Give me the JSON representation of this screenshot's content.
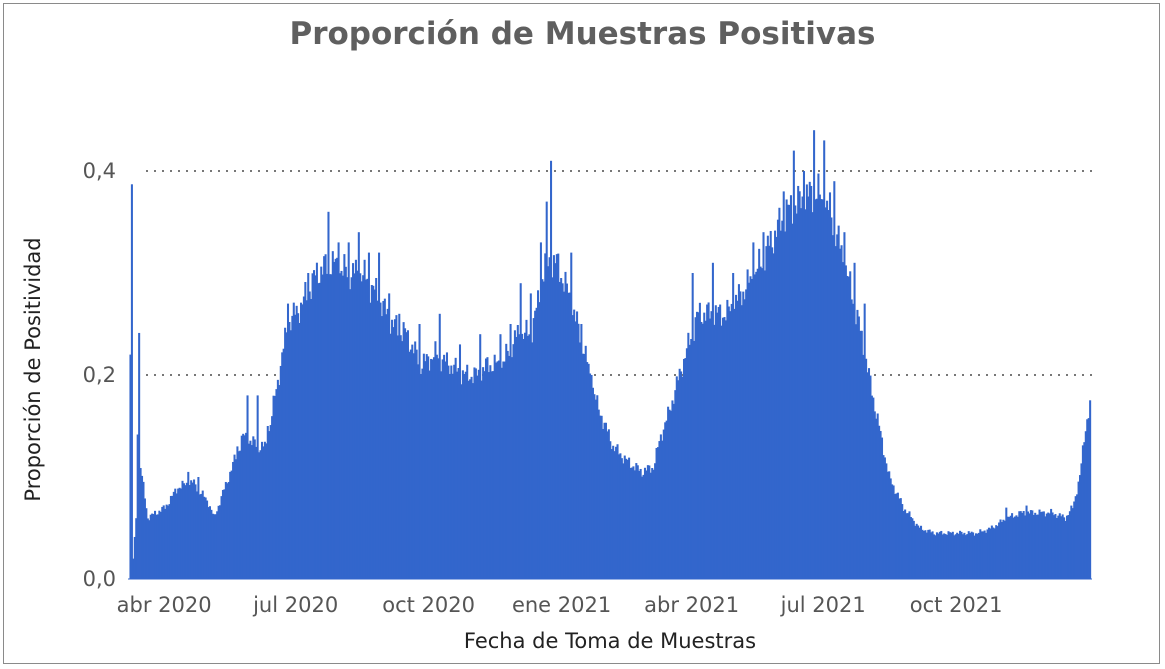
{
  "chart_data": {
    "type": "bar",
    "title": "Proporción de Muestras Positivas",
    "xlabel": "Fecha de Toma de Muestras",
    "ylabel": "Proporción de Positividad",
    "ylim": [
      0,
      0.45
    ],
    "yticks": [
      {
        "value": 0.0,
        "label": "0,0"
      },
      {
        "value": 0.2,
        "label": "0,2"
      },
      {
        "value": 0.4,
        "label": "0,4"
      }
    ],
    "xlim": [
      "2020-03-07",
      "2022-01-03"
    ],
    "xticks": [
      {
        "date": "2020-04-01",
        "label": "abr 2020"
      },
      {
        "date": "2020-07-01",
        "label": "jul 2020"
      },
      {
        "date": "2020-10-01",
        "label": "oct 2020"
      },
      {
        "date": "2021-01-01",
        "label": "ene 2021"
      },
      {
        "date": "2021-04-01",
        "label": "abr 2021"
      },
      {
        "date": "2021-07-01",
        "label": "jul 2021"
      },
      {
        "date": "2021-10-01",
        "label": "oct 2021"
      }
    ],
    "grid": true,
    "series": [
      {
        "color": "#3366cc",
        "points": [
          [
            "2020-03-08",
            0.22
          ],
          [
            "2020-03-09",
            0.37
          ],
          [
            "2020-03-10",
            0.02
          ],
          [
            "2020-03-12",
            0.06
          ],
          [
            "2020-03-14",
            0.24
          ],
          [
            "2020-03-15",
            0.11
          ],
          [
            "2020-03-20",
            0.06
          ],
          [
            "2020-04-01",
            0.07
          ],
          [
            "2020-04-10",
            0.09
          ],
          [
            "2020-04-20",
            0.095
          ],
          [
            "2020-05-01",
            0.075
          ],
          [
            "2020-05-05",
            0.06
          ],
          [
            "2020-05-15",
            0.1
          ],
          [
            "2020-05-25",
            0.14
          ],
          [
            "2020-06-05",
            0.13
          ],
          [
            "2020-06-10",
            0.13
          ],
          [
            "2020-06-15",
            0.17
          ],
          [
            "2020-06-25",
            0.25
          ],
          [
            "2020-07-05",
            0.27
          ],
          [
            "2020-07-15",
            0.3
          ],
          [
            "2020-07-25",
            0.31
          ],
          [
            "2020-08-05",
            0.3
          ],
          [
            "2020-08-15",
            0.3
          ],
          [
            "2020-08-25",
            0.28
          ],
          [
            "2020-09-05",
            0.25
          ],
          [
            "2020-09-15",
            0.24
          ],
          [
            "2020-09-25",
            0.21
          ],
          [
            "2020-10-05",
            0.22
          ],
          [
            "2020-10-15",
            0.21
          ],
          [
            "2020-10-25",
            0.2
          ],
          [
            "2020-11-05",
            0.2
          ],
          [
            "2020-11-10",
            0.21
          ],
          [
            "2020-11-20",
            0.21
          ],
          [
            "2020-12-01",
            0.24
          ],
          [
            "2020-12-10",
            0.24
          ],
          [
            "2020-12-15",
            0.27
          ],
          [
            "2020-12-20",
            0.31
          ],
          [
            "2020-12-28",
            0.31
          ],
          [
            "2021-01-05",
            0.28
          ],
          [
            "2021-01-15",
            0.23
          ],
          [
            "2021-01-25",
            0.17
          ],
          [
            "2021-02-05",
            0.13
          ],
          [
            "2021-02-15",
            0.115
          ],
          [
            "2021-02-25",
            0.105
          ],
          [
            "2021-03-05",
            0.11
          ],
          [
            "2021-03-10",
            0.14
          ],
          [
            "2021-03-15",
            0.16
          ],
          [
            "2021-03-25",
            0.21
          ],
          [
            "2021-04-05",
            0.26
          ],
          [
            "2021-04-15",
            0.26
          ],
          [
            "2021-04-25",
            0.26
          ],
          [
            "2021-05-05",
            0.28
          ],
          [
            "2021-05-15",
            0.3
          ],
          [
            "2021-05-25",
            0.33
          ],
          [
            "2021-06-05",
            0.36
          ],
          [
            "2021-06-15",
            0.37
          ],
          [
            "2021-06-25",
            0.38
          ],
          [
            "2021-07-05",
            0.36
          ],
          [
            "2021-07-15",
            0.31
          ],
          [
            "2021-07-25",
            0.25
          ],
          [
            "2021-08-05",
            0.17
          ],
          [
            "2021-08-15",
            0.1
          ],
          [
            "2021-08-25",
            0.07
          ],
          [
            "2021-09-05",
            0.05
          ],
          [
            "2021-09-15",
            0.045
          ],
          [
            "2021-09-25",
            0.045
          ],
          [
            "2021-10-05",
            0.045
          ],
          [
            "2021-10-15",
            0.045
          ],
          [
            "2021-10-25",
            0.05
          ],
          [
            "2021-11-05",
            0.06
          ],
          [
            "2021-11-15",
            0.065
          ],
          [
            "2021-11-25",
            0.065
          ],
          [
            "2021-12-05",
            0.065
          ],
          [
            "2021-12-15",
            0.06
          ],
          [
            "2021-12-20",
            0.07
          ],
          [
            "2021-12-25",
            0.1
          ],
          [
            "2021-12-29",
            0.15
          ],
          [
            "2022-01-01",
            0.17
          ]
        ],
        "spikes": [
          [
            "2020-04-17",
            0.105
          ],
          [
            "2020-04-24",
            0.1
          ],
          [
            "2020-05-21",
            0.13
          ],
          [
            "2020-05-28",
            0.18
          ],
          [
            "2020-06-04",
            0.18
          ],
          [
            "2020-06-11",
            0.15
          ],
          [
            "2020-06-25",
            0.27
          ],
          [
            "2020-07-09",
            0.3
          ],
          [
            "2020-07-23",
            0.36
          ],
          [
            "2020-07-30",
            0.33
          ],
          [
            "2020-08-06",
            0.33
          ],
          [
            "2020-08-13",
            0.34
          ],
          [
            "2020-08-20",
            0.32
          ],
          [
            "2020-08-27",
            0.32
          ],
          [
            "2020-09-03",
            0.28
          ],
          [
            "2020-09-10",
            0.26
          ],
          [
            "2020-09-24",
            0.25
          ],
          [
            "2020-10-08",
            0.26
          ],
          [
            "2020-10-22",
            0.23
          ],
          [
            "2020-11-05",
            0.24
          ],
          [
            "2020-11-19",
            0.24
          ],
          [
            "2020-11-26",
            0.25
          ],
          [
            "2020-12-03",
            0.29
          ],
          [
            "2020-12-10",
            0.28
          ],
          [
            "2020-12-17",
            0.33
          ],
          [
            "2020-12-21",
            0.37
          ],
          [
            "2020-12-24",
            0.41
          ],
          [
            "2021-01-07",
            0.32
          ],
          [
            "2021-01-14",
            0.25
          ],
          [
            "2021-01-21",
            0.2
          ],
          [
            "2021-01-28",
            0.16
          ],
          [
            "2021-04-01",
            0.3
          ],
          [
            "2021-04-15",
            0.31
          ],
          [
            "2021-04-29",
            0.3
          ],
          [
            "2021-05-13",
            0.33
          ],
          [
            "2021-05-20",
            0.34
          ],
          [
            "2021-06-03",
            0.38
          ],
          [
            "2021-06-10",
            0.42
          ],
          [
            "2021-06-17",
            0.4
          ],
          [
            "2021-06-24",
            0.44
          ],
          [
            "2021-07-01",
            0.43
          ],
          [
            "2021-07-08",
            0.39
          ],
          [
            "2021-07-15",
            0.34
          ],
          [
            "2021-07-22",
            0.31
          ],
          [
            "2021-07-29",
            0.27
          ],
          [
            "2021-11-04",
            0.07
          ],
          [
            "2021-11-18",
            0.072
          ]
        ]
      }
    ]
  }
}
